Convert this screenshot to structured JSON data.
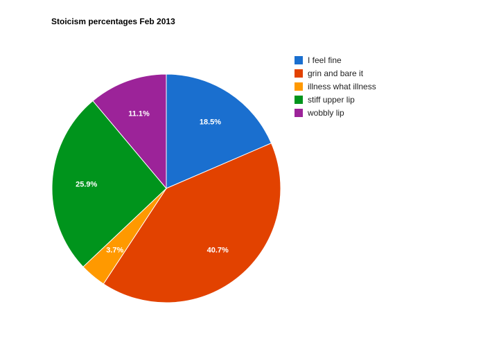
{
  "chart_data": {
    "type": "pie",
    "title": "Stoicism percentages Feb 2013",
    "categories": [
      "I feel fine",
      "grin and bare it",
      "illness what illness",
      "stiff upper lip",
      "wobbly lip"
    ],
    "values": [
      18.5,
      40.7,
      3.7,
      25.9,
      11.1
    ],
    "labels": [
      "18.5%",
      "40.7%",
      "3.7%",
      "25.9%",
      "11.1%"
    ],
    "colors": [
      "#1a6fcf",
      "#e24200",
      "#ff9900",
      "#00941c",
      "#9c2399"
    ],
    "legend_position": "right",
    "start_angle_deg": 0,
    "direction": "clockwise"
  },
  "legend": {
    "items": [
      {
        "label": "I feel fine",
        "color": "#1a6fcf"
      },
      {
        "label": "grin and bare it",
        "color": "#e24200"
      },
      {
        "label": "illness what illness",
        "color": "#ff9900"
      },
      {
        "label": "stiff upper lip",
        "color": "#00941c"
      },
      {
        "label": "wobbly lip",
        "color": "#9c2399"
      }
    ]
  }
}
